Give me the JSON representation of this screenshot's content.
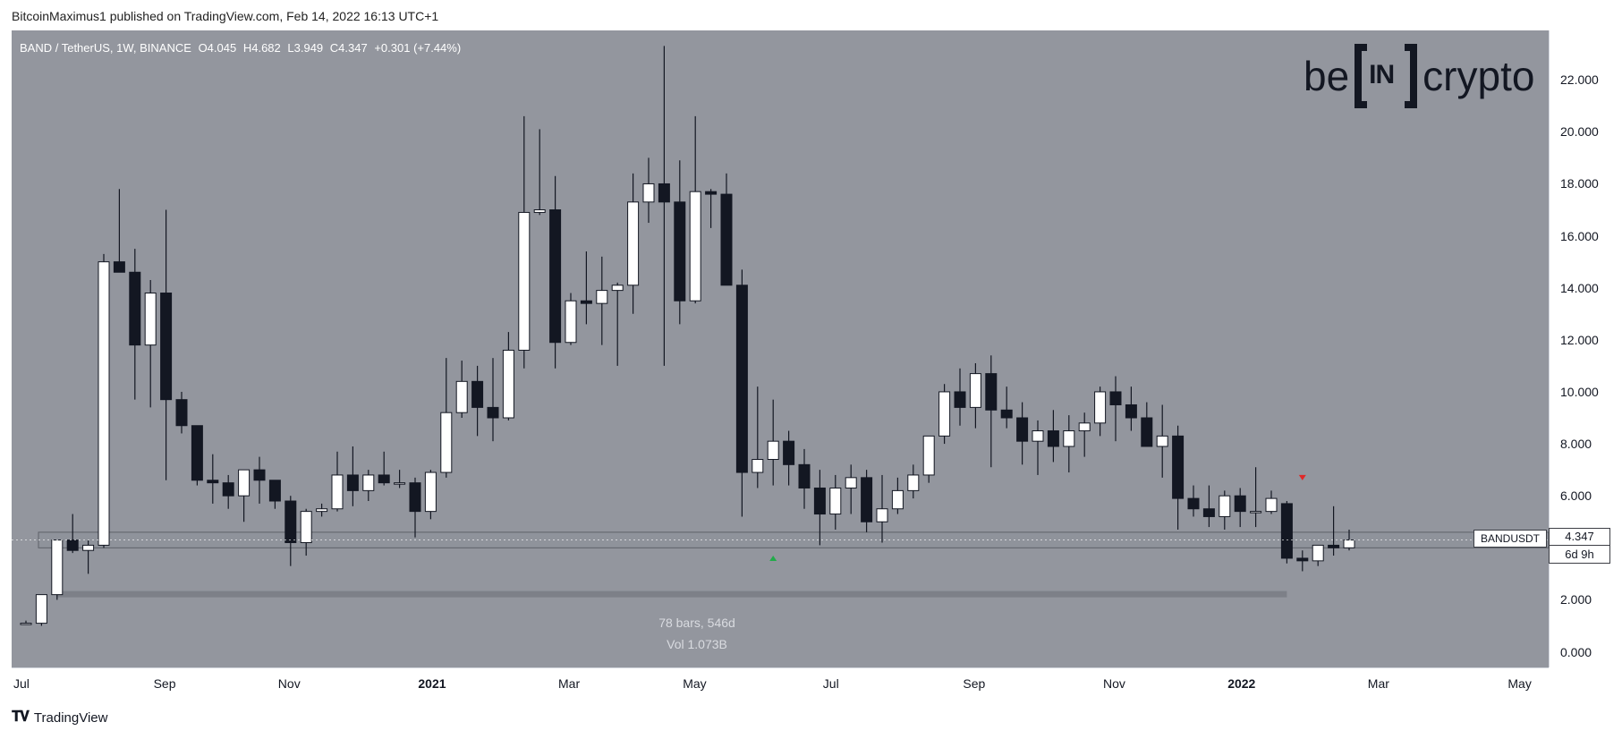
{
  "header": {
    "published": "BitcoinMaximus1 published on TradingView.com, Feb 14, 2022 16:13 UTC+1"
  },
  "legend": {
    "symbol": "BAND / TetherUS, 1W, BINANCE",
    "open": "O4.045",
    "high": "H4.682",
    "low": "L3.949",
    "close": "C4.347",
    "change": "+0.301 (+7.44%)"
  },
  "price_axis": {
    "unit": "USDT",
    "ticks": [
      "22.000",
      "20.000",
      "18.000",
      "16.000",
      "14.000",
      "12.000",
      "10.000",
      "8.000",
      "6.000",
      "4.000",
      "2.000",
      "0.000"
    ],
    "current_symbol": "BANDUSDT",
    "current_price": "4.347",
    "countdown": "6d 9h"
  },
  "time_axis": {
    "ticks": [
      "Jul",
      "Sep",
      "Nov",
      "2021",
      "Mar",
      "May",
      "Jul",
      "Sep",
      "Nov",
      "2022",
      "Mar",
      "May"
    ]
  },
  "stats": {
    "bars": "78 bars, 546d",
    "volume": "Vol 1.073B"
  },
  "brand": {
    "left": "be",
    "middle": "IN",
    "right": "crypto"
  },
  "footer": {
    "logo_text": "TradingView"
  },
  "colors": {
    "background": "#93969e",
    "up": "#ffffff",
    "down": "#131722",
    "marker_up": "#22ab4a",
    "marker_down": "#e02828"
  },
  "chart_data": {
    "type": "candlestick",
    "symbol": "BAND / TetherUS",
    "interval": "1W",
    "exchange": "BINANCE",
    "ylim": [
      -0.6,
      23.9
    ],
    "support_range": [
      4.0,
      4.6
    ],
    "measure_baseline": 2.2,
    "markers": [
      {
        "type": "up",
        "index": 48,
        "value": 3.6
      },
      {
        "type": "down",
        "index": 82,
        "value": 6.7
      }
    ],
    "candles": [
      [
        1.1,
        1.2,
        1.1,
        1.1
      ],
      [
        1.1,
        2.2,
        1.0,
        2.2
      ],
      [
        2.2,
        4.3,
        2.0,
        4.3
      ],
      [
        4.3,
        5.3,
        3.8,
        3.9
      ],
      [
        3.9,
        4.3,
        3.0,
        4.1
      ],
      [
        4.1,
        15.3,
        4.0,
        15.0
      ],
      [
        15.0,
        17.8,
        14.8,
        14.6
      ],
      [
        14.6,
        15.5,
        9.7,
        11.8
      ],
      [
        11.8,
        14.3,
        9.4,
        13.8
      ],
      [
        13.8,
        17.0,
        6.6,
        9.7
      ],
      [
        9.7,
        10.0,
        8.4,
        8.7
      ],
      [
        8.7,
        8.7,
        6.4,
        6.6
      ],
      [
        6.6,
        7.6,
        5.7,
        6.5
      ],
      [
        6.5,
        6.8,
        5.5,
        6.0
      ],
      [
        6.0,
        7.0,
        5.0,
        7.0
      ],
      [
        7.0,
        7.5,
        5.7,
        6.6
      ],
      [
        6.6,
        6.6,
        5.5,
        5.8
      ],
      [
        5.8,
        6.0,
        3.3,
        4.2
      ],
      [
        4.2,
        5.5,
        3.7,
        5.4
      ],
      [
        5.4,
        5.7,
        5.2,
        5.5
      ],
      [
        5.5,
        7.7,
        5.4,
        6.8
      ],
      [
        6.8,
        7.9,
        5.6,
        6.2
      ],
      [
        6.2,
        7.0,
        5.8,
        6.8
      ],
      [
        6.8,
        7.7,
        6.4,
        6.5
      ],
      [
        6.5,
        7.0,
        6.3,
        6.5
      ],
      [
        6.5,
        6.7,
        4.4,
        5.4
      ],
      [
        5.4,
        7.0,
        5.1,
        6.9
      ],
      [
        6.9,
        11.3,
        6.7,
        9.2
      ],
      [
        9.2,
        11.2,
        9.0,
        10.4
      ],
      [
        10.4,
        11.0,
        8.3,
        9.4
      ],
      [
        9.4,
        11.3,
        8.1,
        9.0
      ],
      [
        9.0,
        12.3,
        8.9,
        11.6
      ],
      [
        11.6,
        20.6,
        10.9,
        16.9
      ],
      [
        16.9,
        20.1,
        16.8,
        17.0
      ],
      [
        17.0,
        18.3,
        10.9,
        11.9
      ],
      [
        11.9,
        13.8,
        11.8,
        13.5
      ],
      [
        13.5,
        15.4,
        12.6,
        13.4
      ],
      [
        13.4,
        15.2,
        11.8,
        13.9
      ],
      [
        13.9,
        14.2,
        11.0,
        14.1
      ],
      [
        14.1,
        18.4,
        13.0,
        17.3
      ],
      [
        17.3,
        19.0,
        16.5,
        18.0
      ],
      [
        18.0,
        23.3,
        11.0,
        17.3
      ],
      [
        17.3,
        18.9,
        12.6,
        13.5
      ],
      [
        13.5,
        20.6,
        13.4,
        17.7
      ],
      [
        17.7,
        17.8,
        16.3,
        17.6
      ],
      [
        17.6,
        18.4,
        14.1,
        14.1
      ],
      [
        14.1,
        14.7,
        5.2,
        6.9
      ],
      [
        6.9,
        10.2,
        6.3,
        7.4
      ],
      [
        7.4,
        9.7,
        6.4,
        8.1
      ],
      [
        8.1,
        8.5,
        6.4,
        7.2
      ],
      [
        7.2,
        7.8,
        5.5,
        6.3
      ],
      [
        6.3,
        7.0,
        4.1,
        5.3
      ],
      [
        5.3,
        6.8,
        4.7,
        6.3
      ],
      [
        6.3,
        7.2,
        5.3,
        6.7
      ],
      [
        6.7,
        7.0,
        4.6,
        5.0
      ],
      [
        5.0,
        6.8,
        4.2,
        5.5
      ],
      [
        5.5,
        6.7,
        5.3,
        6.2
      ],
      [
        6.2,
        7.2,
        5.9,
        6.8
      ],
      [
        6.8,
        8.2,
        6.5,
        8.3
      ],
      [
        8.3,
        10.3,
        8.0,
        10.0
      ],
      [
        10.0,
        10.9,
        8.7,
        9.4
      ],
      [
        9.4,
        11.1,
        8.6,
        10.7
      ],
      [
        10.7,
        11.4,
        7.1,
        9.3
      ],
      [
        9.3,
        10.2,
        8.6,
        9.0
      ],
      [
        9.0,
        9.6,
        7.2,
        8.1
      ],
      [
        8.1,
        8.9,
        6.8,
        8.5
      ],
      [
        8.5,
        9.3,
        7.3,
        7.9
      ],
      [
        7.9,
        9.1,
        6.9,
        8.5
      ],
      [
        8.5,
        9.2,
        7.5,
        8.8
      ],
      [
        8.8,
        10.2,
        8.3,
        10.0
      ],
      [
        10.0,
        10.6,
        8.1,
        9.5
      ],
      [
        9.5,
        10.2,
        8.5,
        9.0
      ],
      [
        9.0,
        9.6,
        7.9,
        7.9
      ],
      [
        7.9,
        9.5,
        6.7,
        8.3
      ],
      [
        8.3,
        8.7,
        4.7,
        5.9
      ],
      [
        5.9,
        6.4,
        5.2,
        5.5
      ],
      [
        5.5,
        6.4,
        4.8,
        5.2
      ],
      [
        5.2,
        6.2,
        4.7,
        6.0
      ],
      [
        6.0,
        6.3,
        4.8,
        5.4
      ],
      [
        5.4,
        7.1,
        4.8,
        5.4
      ],
      [
        5.4,
        6.2,
        5.3,
        5.9
      ],
      [
        5.7,
        5.8,
        3.4,
        3.6
      ],
      [
        3.6,
        3.9,
        3.1,
        3.5
      ],
      [
        3.5,
        4.1,
        3.3,
        4.1
      ],
      [
        4.1,
        5.6,
        3.7,
        4.0
      ],
      [
        4.0,
        4.7,
        3.9,
        4.3
      ]
    ]
  }
}
